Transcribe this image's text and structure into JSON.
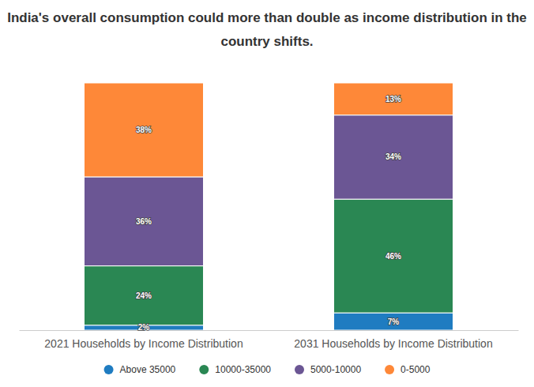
{
  "chart_data": {
    "type": "bar",
    "title": "India's overall consumption could more than double as income distribution in the country shifts.",
    "categories": [
      "2021 Households by Income Distribution",
      "2031 Households by Income Distribution"
    ],
    "series": [
      {
        "name": "Above 35000",
        "color": "#1f7cc1",
        "values": [
          2,
          7
        ],
        "value_labels": [
          "2%",
          "7%"
        ]
      },
      {
        "name": "10000-35000",
        "color": "#2a8753",
        "values": [
          24,
          46
        ],
        "value_labels": [
          "24%",
          "46%"
        ]
      },
      {
        "name": "5000-10000",
        "color": "#6b5694",
        "values": [
          36,
          34
        ],
        "value_labels": [
          "36%",
          "34%"
        ]
      },
      {
        "name": "0-5000",
        "color": "#fe8838",
        "values": [
          38,
          13
        ],
        "value_labels": [
          "38%",
          "13%"
        ]
      }
    ],
    "ylim": [
      0,
      100
    ],
    "stacked": true,
    "data_labels": true,
    "tick_labels": "x",
    "legend": "bottom"
  }
}
